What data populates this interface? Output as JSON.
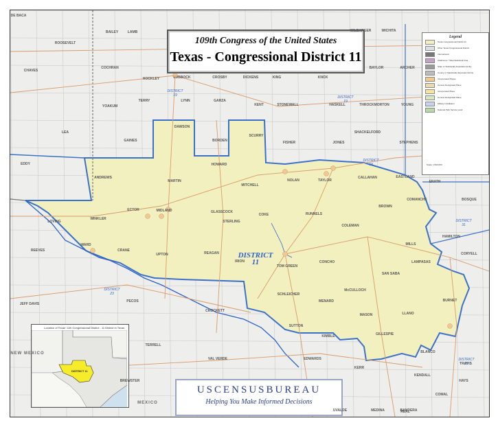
{
  "title": {
    "congress": "109th Congress of the United States",
    "district": "Texas - Congressional District 11"
  },
  "district_label": {
    "line1": "DISTRICT",
    "line2": "11"
  },
  "other_districts": [
    {
      "line1": "DISTRICT",
      "line2": "19"
    },
    {
      "line1": "DISTRICT",
      "line2": "19"
    },
    {
      "line1": "DISTRICT",
      "line2": "19"
    },
    {
      "line1": "DISTRICT",
      "line2": "23"
    },
    {
      "line1": "DISTRICT",
      "line2": "31"
    },
    {
      "line1": "DISTRICT",
      "line2": "21"
    }
  ],
  "states": [
    "NEW MEXICO",
    "MEXICO"
  ],
  "counties": {
    "outside": [
      "DE BACA",
      "ROOSEVELT",
      "CHAVES",
      "LEA",
      "EDDY",
      "BAILEY",
      "LAMB",
      "COCHRAN",
      "HOCKLEY",
      "LUBBOCK",
      "YOAKUM",
      "TERRY",
      "LYNN",
      "GARZA",
      "CROSBY",
      "DICKENS",
      "KING",
      "KNOX",
      "STONEWALL",
      "HASKELL",
      "THROCKMORTON",
      "YOUNG",
      "KENT",
      "FISHER",
      "JONES",
      "SHACKELFORD",
      "STEPHENS",
      "GAINES",
      "DAWSON",
      "BORDEN",
      "SCURRY",
      "HOWARD",
      "NOLAN",
      "TAYLOR",
      "CALLAHAN",
      "EASTLAND",
      "ERATH",
      "BOSQUE",
      "HAMILTON",
      "CORYELL",
      "LOVING",
      "WINKLER",
      "REEVES",
      "WARD",
      "PECOS",
      "JEFF DAVIS",
      "CROCKETT",
      "TERRELL",
      "VAL VERDE",
      "SUTTON",
      "KERR",
      "EDWARDS",
      "KENDALL",
      "BREWSTER",
      "COMAL",
      "UVALDE",
      "MEDINA",
      "BANDERA",
      "REAL",
      "HAYS",
      "TRAVIS",
      "BLANCO",
      "WILBARGER",
      "WICHITA",
      "BAYLOR",
      "ARCHER",
      "KIMBLE"
    ],
    "district": [
      "ANDREWS",
      "MARTIN",
      "MITCHELL",
      "ECTOR",
      "MIDLAND",
      "GLASSCOCK",
      "STERLING",
      "COKE",
      "RUNNELS",
      "COLEMAN",
      "BROWN",
      "COMANCHE",
      "MILLS",
      "CRANE",
      "UPTON",
      "REAGAN",
      "IRION",
      "TOM GREEN",
      "CONCHO",
      "McCULLOCH",
      "SAN SABA",
      "LAMPASAS",
      "SCHLEICHER",
      "MENARD",
      "MASON",
      "LLANO",
      "BURNET",
      "GILLESPIE"
    ]
  },
  "legend": {
    "title": "Legend",
    "items": [
      {
        "label": "Texas Congressional District 11",
        "color": "#f3f0bf"
      },
      {
        "label": "Other Texas Congressional District",
        "color": "#dde0e2"
      },
      {
        "label": "International",
        "color": "#777777"
      },
      {
        "label": "Oklahoma / Tribal Statistical Area",
        "color": "#c8a0c8"
      },
      {
        "label": "State or Statistically Equivalent Entity",
        "color": "#999999"
      },
      {
        "label": "County or Statistically Equivalent Entity",
        "color": "#bbbbbb"
      },
      {
        "label": "Incorporated Places",
        "color": "#f2c98a"
      },
      {
        "label": "Census Designated Place",
        "color": "#e8d9b0"
      },
      {
        "label": "Incorporated Place",
        "color": "#f5e3a0"
      },
      {
        "label": "Census Designated Place",
        "color": "#d9e8c4"
      },
      {
        "label": "Military Installation",
        "color": "#c6d3ea"
      },
      {
        "label": "National Park Service Land",
        "color": "#b9d9a5"
      }
    ],
    "scale": "Scale: 1:600,000"
  },
  "inset": {
    "caption": "Location of Texas' 11th Congressional District - 11 District in Texas",
    "label": "DISTRICT 11"
  },
  "census": {
    "name": "USCENSUSBUREAU",
    "tagline": "Helping You Make Informed Decisions"
  },
  "colors": {
    "district_fill": "#f3f0bf",
    "district_border": "#3a70c9",
    "background": "#eeeeec",
    "roads": "#d99a6a",
    "water": "#2c62c9"
  }
}
